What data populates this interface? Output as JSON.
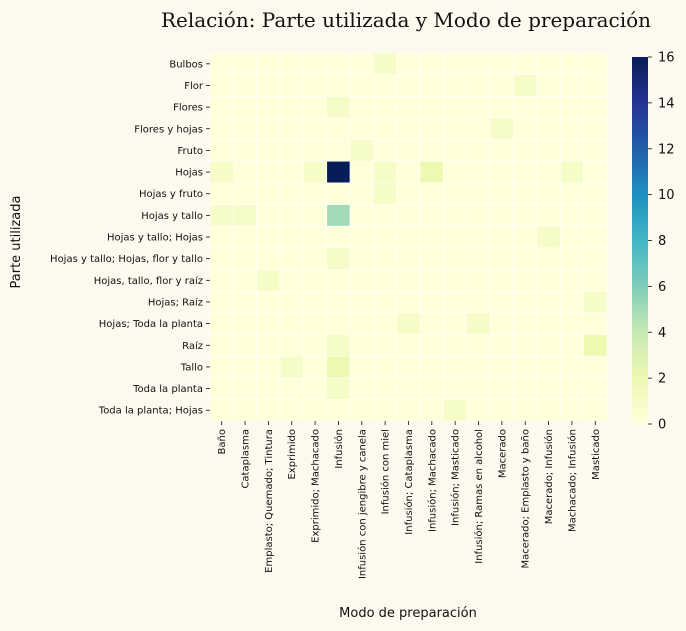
{
  "chart_data": {
    "type": "heatmap",
    "title": "Relación: Parte utilizada y Modo de preparación",
    "xlabel": "Modo de preparación",
    "ylabel": "Parte utilizada",
    "x_categories": [
      "Baño",
      "Cataplasma",
      "Emplasto; Quemado; Tintura",
      "Exprimido",
      "Exprimido; Machacado",
      "Infusión",
      "Infusión con jengibre y canela",
      "Infusión con miel",
      "Infusión; Cataplasma",
      "Infusión; Machacado",
      "Infusión; Masticado",
      "Infusión; Ramas en alcohol",
      "Macerado",
      "Macerado; Emplasto y baño",
      "Macerado; Infusión",
      "Machacado; Infusión",
      "Masticado"
    ],
    "y_categories": [
      "Bulbos",
      "Flor",
      "Flores",
      "Flores y hojas",
      "Fruto",
      "Hojas",
      "Hojas y fruto",
      "Hojas y tallo",
      "Hojas y tallo; Hojas",
      "Hojas y tallo; Hojas, flor y tallo",
      "Hojas, tallo, flor y raíz",
      "Hojas; Raíz",
      "Hojas; Toda la planta",
      "Raíz",
      "Tallo",
      "Toda la planta",
      "Toda la planta; Hojas"
    ],
    "values": [
      [
        0,
        0,
        0,
        0,
        0,
        0,
        0,
        1,
        0,
        0,
        0,
        0,
        0,
        0,
        0,
        0,
        0
      ],
      [
        0,
        0,
        0,
        0,
        0,
        0,
        0,
        0,
        0,
        0,
        0,
        0,
        0,
        1,
        0,
        0,
        0
      ],
      [
        0,
        0,
        0,
        0,
        0,
        1,
        0,
        0,
        0,
        0,
        0,
        0,
        0,
        0,
        0,
        0,
        0
      ],
      [
        0,
        0,
        0,
        0,
        0,
        0,
        0,
        0,
        0,
        0,
        0,
        0,
        1,
        0,
        0,
        0,
        0
      ],
      [
        0,
        0,
        0,
        0,
        0,
        0,
        1,
        0,
        0,
        0,
        0,
        0,
        0,
        0,
        0,
        0,
        0
      ],
      [
        1,
        0,
        0,
        0,
        1,
        16,
        0,
        1,
        0,
        2,
        0,
        0,
        0,
        0,
        0,
        1,
        0
      ],
      [
        0,
        0,
        0,
        0,
        0,
        0,
        0,
        1,
        0,
        0,
        0,
        0,
        0,
        0,
        0,
        0,
        0
      ],
      [
        1,
        1,
        0,
        0,
        0,
        5,
        0,
        0,
        0,
        0,
        0,
        0,
        0,
        0,
        0,
        0,
        0
      ],
      [
        0,
        0,
        0,
        0,
        0,
        0,
        0,
        0,
        0,
        0,
        0,
        0,
        0,
        0,
        1,
        0,
        0
      ],
      [
        0,
        0,
        0,
        0,
        0,
        1,
        0,
        0,
        0,
        0,
        0,
        0,
        0,
        0,
        0,
        0,
        0
      ],
      [
        0,
        0,
        1,
        0,
        0,
        0,
        0,
        0,
        0,
        0,
        0,
        0,
        0,
        0,
        0,
        0,
        0
      ],
      [
        0,
        0,
        0,
        0,
        0,
        0,
        0,
        0,
        0,
        0,
        0,
        0,
        0,
        0,
        0,
        0,
        1
      ],
      [
        0,
        0,
        0,
        0,
        0,
        0,
        0,
        0,
        1,
        0,
        0,
        1,
        0,
        0,
        0,
        0,
        0
      ],
      [
        0,
        0,
        0,
        0,
        0,
        1,
        0,
        0,
        0,
        0,
        0,
        0,
        0,
        0,
        0,
        0,
        2
      ],
      [
        0,
        0,
        0,
        1,
        0,
        2,
        0,
        0,
        0,
        0,
        0,
        0,
        0,
        0,
        0,
        0,
        0
      ],
      [
        0,
        0,
        0,
        0,
        0,
        1,
        0,
        0,
        0,
        0,
        0,
        0,
        0,
        0,
        0,
        0,
        0
      ],
      [
        0,
        0,
        0,
        0,
        0,
        0,
        0,
        0,
        0,
        0,
        1,
        0,
        0,
        0,
        0,
        0,
        0
      ]
    ],
    "colorbar": {
      "min": 0,
      "max": 16,
      "ticks": [
        0,
        2,
        4,
        6,
        8,
        10,
        12,
        14,
        16
      ],
      "colormap": "YlGnBu"
    },
    "colors": {
      "background": "#fdf9ee"
    }
  }
}
